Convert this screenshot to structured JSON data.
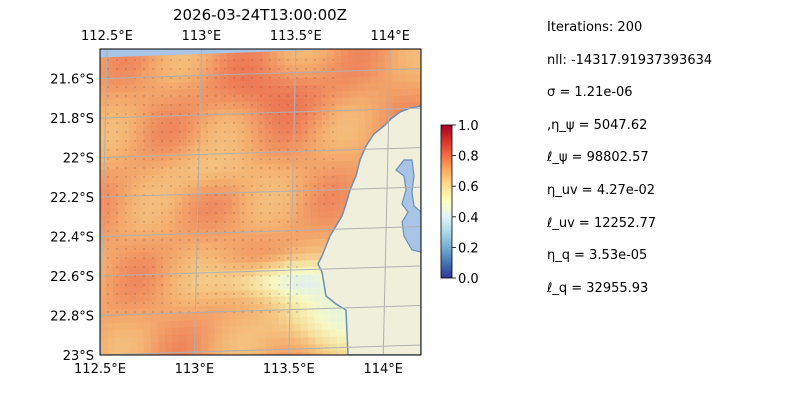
{
  "chart_data": {
    "type": "heatmap",
    "title": "2026-03-24T13:00:00Z",
    "x_ticks": [
      "112.5°E",
      "113°E",
      "113.5°E",
      "114°E"
    ],
    "x_tick_values": [
      112.5,
      113.0,
      113.5,
      114.0
    ],
    "y_ticks": [
      "21.6°S",
      "21.8°S",
      "22°S",
      "22.2°S",
      "22.4°S",
      "22.6°S",
      "22.8°S",
      "23°S"
    ],
    "y_tick_values": [
      -21.6,
      -21.8,
      -22.0,
      -22.2,
      -22.4,
      -22.6,
      -22.8,
      -23.0
    ],
    "xlim": [
      112.5,
      114.2
    ],
    "ylim": [
      -23.0,
      -21.45
    ],
    "grid": true,
    "colormap": "RdYlBu_r",
    "colorbar": {
      "ticks": [
        "0.0",
        "0.2",
        "0.4",
        "0.6",
        "0.8",
        "1.0"
      ],
      "tick_values": [
        0.0,
        0.2,
        0.4,
        0.6,
        0.8,
        1.0
      ],
      "range": [
        0,
        1
      ]
    },
    "colors": {
      "ocean": "#a8c4e6",
      "land": "#efefdc",
      "coast": "#6e8fb5"
    }
  },
  "parameters": [
    "Iterations: 200",
    "nll: -14317.91937393634",
    "σ = 1.21e-06",
    ",η_ψ = 5047.62",
    "ℓ_ψ = 98802.57",
    "η_uv = 4.27e-02",
    "ℓ_uv = 12252.77",
    "η_q = 3.53e-05",
    "ℓ_q = 32955.93"
  ]
}
